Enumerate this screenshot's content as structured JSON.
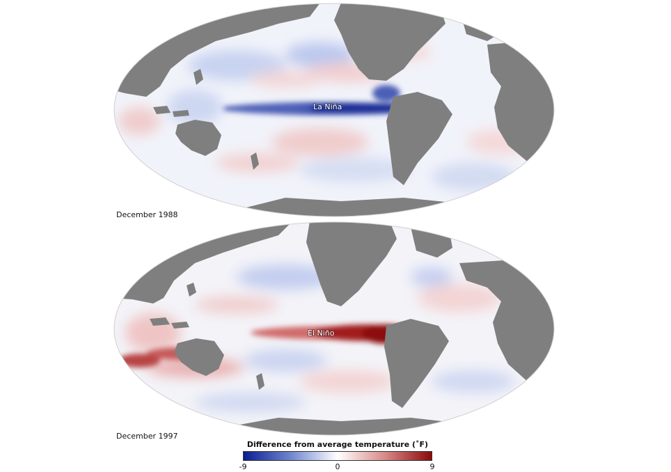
{
  "maps": [
    {
      "date": "December 1988",
      "event_label": "La Niña",
      "pattern": "cool-equatorial-pacific"
    },
    {
      "date": "December 1997",
      "event_label": "El Niño",
      "pattern": "warm-equatorial-pacific"
    }
  ],
  "legend": {
    "title": "Difference from average temperature (˚F)",
    "min_label": "-9",
    "mid_label": "0",
    "max_label": "9",
    "range": [
      -9,
      9
    ],
    "colors": {
      "cold": "#0a1f8f",
      "neutral": "#ffffff",
      "warm": "#8b0a0a"
    }
  },
  "colors": {
    "land": "#7f7f7f",
    "ocean_neutral": "#f2f4fb"
  }
}
